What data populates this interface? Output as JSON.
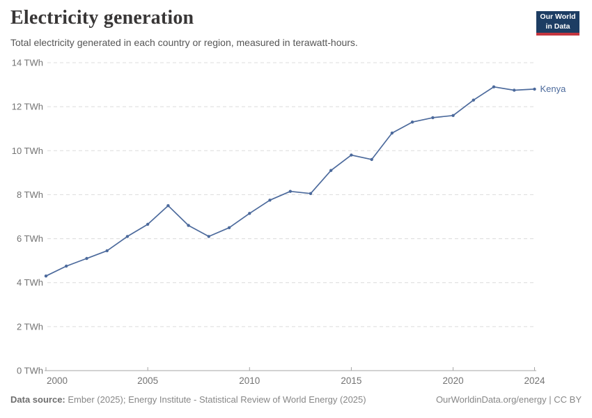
{
  "header": {
    "title": "Electricity generation",
    "subtitle": "Total electricity generated in each country or region, measured in terawatt-hours.",
    "logo": {
      "line1": "Our World",
      "line2": "in Data"
    }
  },
  "chart_data": {
    "type": "line",
    "title": "Electricity generation",
    "unit": "TWh",
    "x": [
      2000,
      2001,
      2002,
      2003,
      2004,
      2005,
      2006,
      2007,
      2008,
      2009,
      2010,
      2011,
      2012,
      2013,
      2014,
      2015,
      2016,
      2017,
      2018,
      2019,
      2020,
      2021,
      2022,
      2023,
      2024
    ],
    "series": [
      {
        "name": "Kenya",
        "color": "#4c6a9c",
        "values": [
          4.3,
          4.75,
          5.1,
          5.45,
          6.1,
          6.65,
          7.5,
          6.6,
          6.1,
          6.5,
          7.15,
          7.75,
          8.15,
          8.05,
          9.1,
          9.8,
          9.6,
          10.8,
          11.3,
          11.5,
          11.6,
          12.3,
          12.9,
          12.75,
          12.8
        ]
      }
    ],
    "ylim": [
      0,
      14
    ],
    "yticks": [
      0,
      2,
      4,
      6,
      8,
      10,
      12,
      14
    ],
    "ytick_suffix": " TWh",
    "xticks": [
      2000,
      2005,
      2010,
      2015,
      2020,
      2024
    ],
    "grid": "horizontal-dashed",
    "legend": "end-of-line-label"
  },
  "footer": {
    "source_label": "Data source:",
    "source_text": "Ember (2025); Energy Institute - Statistical Review of World Energy (2025)",
    "credit": "OurWorldinData.org/energy | CC BY"
  },
  "colors": {
    "series_line": "#4c6a9c",
    "grid_line": "#dcdcdc",
    "axis_line": "#a5a5a5",
    "tick_label": "#737373",
    "title_text": "#383636",
    "subtitle_text": "#555555",
    "logo_bg": "#1d3d63",
    "logo_stripe": "#c4353f"
  }
}
